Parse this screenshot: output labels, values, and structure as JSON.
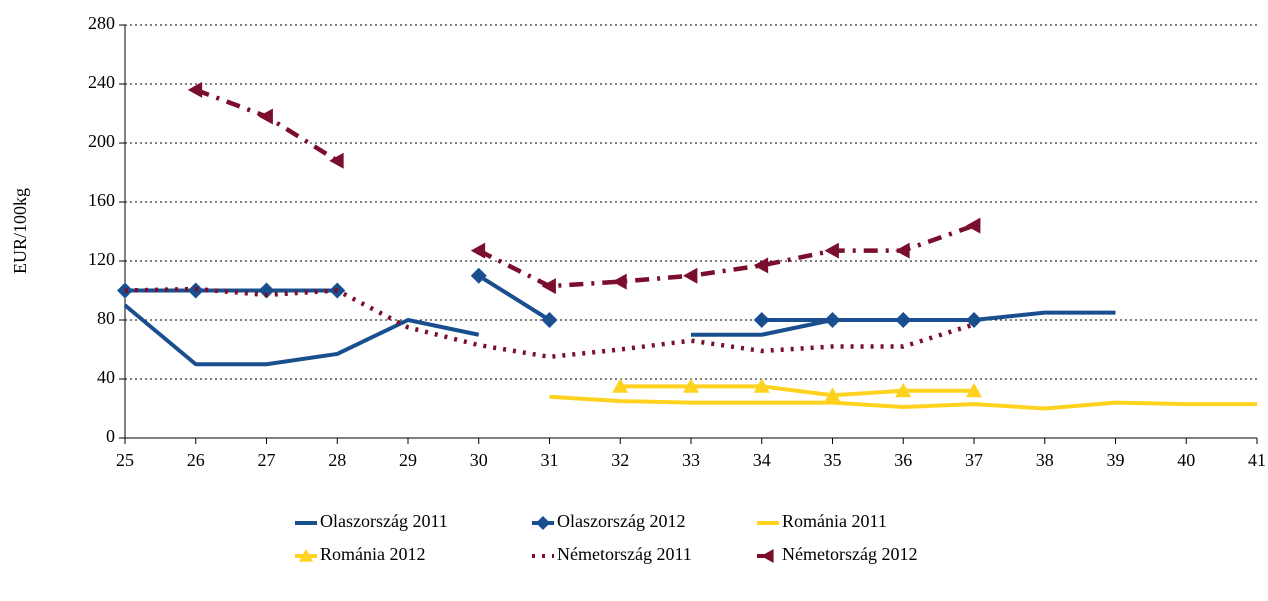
{
  "chart_data": {
    "type": "line",
    "y_label": "EUR/100kg",
    "x": [
      25,
      26,
      27,
      28,
      29,
      30,
      31,
      32,
      33,
      34,
      35,
      36,
      37,
      38,
      39,
      40,
      41
    ],
    "xlim": [
      25,
      41
    ],
    "xticks": [
      25,
      26,
      27,
      28,
      29,
      30,
      31,
      32,
      33,
      34,
      35,
      36,
      37,
      38,
      39,
      40,
      41
    ],
    "ylim": [
      0,
      280
    ],
    "yticks": [
      0,
      40,
      80,
      120,
      160,
      200,
      240,
      280
    ],
    "grid": true,
    "legend": "bottom",
    "series": [
      {
        "name": "Olaszország 2011",
        "color": "#1a4f8f",
        "dash": "solid",
        "marker": "none",
        "values": [
          90,
          50,
          50,
          57,
          80,
          70,
          null,
          null,
          70,
          70,
          80,
          80,
          80,
          85,
          85,
          null,
          null
        ]
      },
      {
        "name": "Olaszország 2012",
        "color": "#1a4f8f",
        "dash": "solid",
        "marker": "diamond",
        "values": [
          100,
          100,
          100,
          100,
          null,
          110,
          80,
          null,
          null,
          80,
          80,
          80,
          80,
          null,
          null,
          null,
          null
        ]
      },
      {
        "name": "Románia 2011",
        "color": "#ffd21f",
        "dash": "solid",
        "marker": "none",
        "values": [
          null,
          null,
          null,
          null,
          null,
          null,
          28,
          25,
          24,
          24,
          24,
          21,
          23,
          20,
          24,
          23,
          23
        ]
      },
      {
        "name": "Románia 2012",
        "color": "#ffd21f",
        "dash": "solid",
        "marker": "triangle-up",
        "values": [
          null,
          null,
          null,
          null,
          null,
          null,
          null,
          35,
          35,
          35,
          29,
          32,
          32,
          null,
          null,
          null,
          null
        ]
      },
      {
        "name": "Németország 2011",
        "color": "#7a0e2c",
        "dash": "dot",
        "marker": "none",
        "values": [
          100,
          101,
          97,
          100,
          75,
          63,
          55,
          60,
          66,
          59,
          62,
          62,
          77,
          null,
          null,
          null,
          null
        ]
      },
      {
        "name": "Németország 2012",
        "color": "#7a0e2c",
        "dash": "dashdot",
        "marker": "triangle-left",
        "values": [
          null,
          236,
          218,
          188,
          null,
          127,
          103,
          106,
          110,
          117,
          127,
          127,
          144,
          null,
          null,
          null,
          null
        ]
      }
    ]
  }
}
